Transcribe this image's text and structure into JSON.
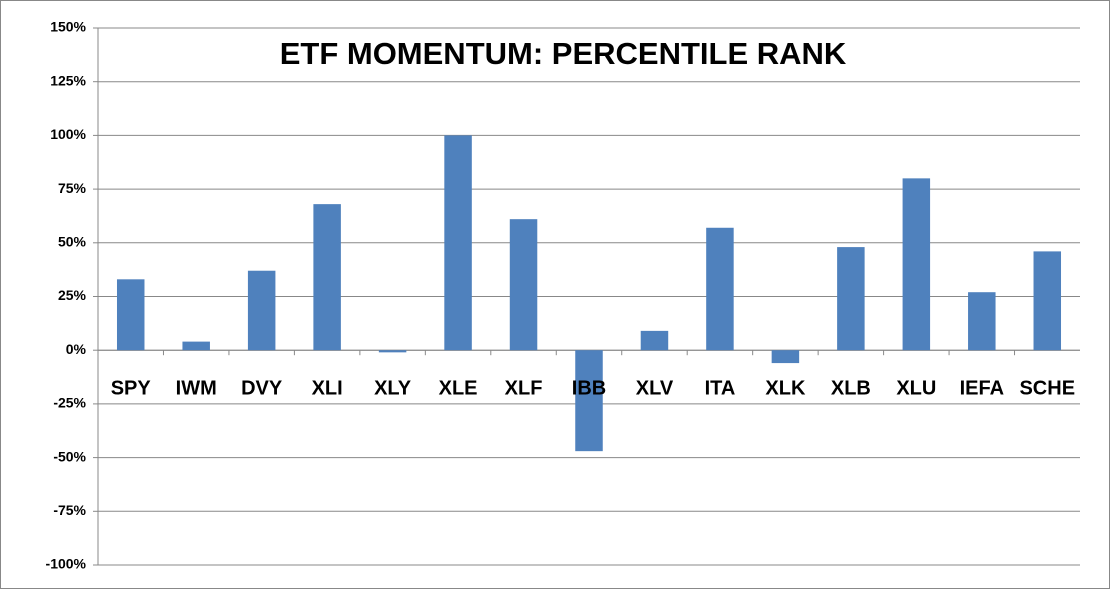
{
  "chart_data": {
    "type": "bar",
    "title": "ETF MOMENTUM: PERCENTILE RANK",
    "categories": [
      "SPY",
      "IWM",
      "DVY",
      "XLI",
      "XLY",
      "XLE",
      "XLF",
      "IBB",
      "XLV",
      "ITA",
      "XLK",
      "XLB",
      "XLU",
      "IEFA",
      "SCHE"
    ],
    "values": [
      33,
      4,
      37,
      68,
      -1,
      100,
      61,
      -47,
      9,
      57,
      -6,
      48,
      80,
      27,
      46
    ],
    "color": "#4f81bd",
    "ylim": [
      -100,
      150
    ],
    "yticks": [
      {
        "value": -100,
        "label": "-100%"
      },
      {
        "value": -75,
        "label": "-75%"
      },
      {
        "value": -50,
        "label": "-50%"
      },
      {
        "value": -25,
        "label": "-25%"
      },
      {
        "value": 0,
        "label": "0%"
      },
      {
        "value": 25,
        "label": "25%"
      },
      {
        "value": 50,
        "label": "50%"
      },
      {
        "value": 75,
        "label": "75%"
      },
      {
        "value": 100,
        "label": "100%"
      },
      {
        "value": 125,
        "label": "125%"
      },
      {
        "value": 150,
        "label": "150%"
      }
    ],
    "grid": true
  }
}
